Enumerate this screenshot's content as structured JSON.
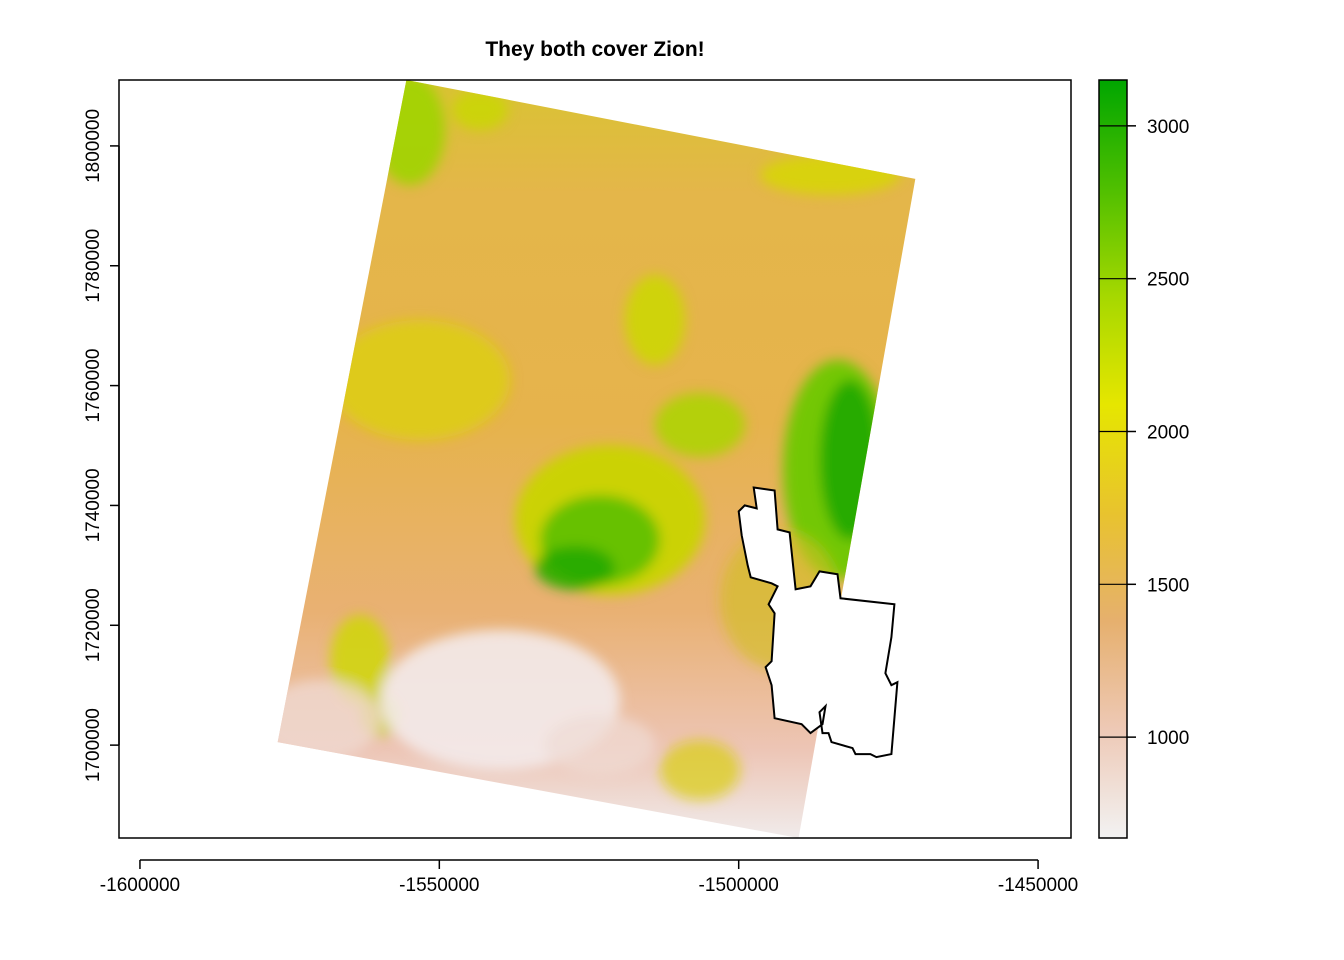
{
  "title": "They both cover Zion!",
  "chart_data": {
    "type": "map",
    "x_ticks": [
      "-1600000",
      "-1550000",
      "-1500000",
      "-1450000"
    ],
    "y_ticks": [
      "1700000",
      "1720000",
      "1740000",
      "1760000",
      "1780000",
      "1800000"
    ],
    "x_tick_values": [
      -1600000,
      -1550000,
      -1500000,
      -1450000
    ],
    "y_tick_values": [
      1700000,
      1720000,
      1740000,
      1760000,
      1780000,
      1800000
    ],
    "xlim": [
      -1603500,
      -1444500
    ],
    "ylim": [
      1684500,
      1811000
    ],
    "legend": {
      "type": "continuous",
      "ticks": [
        "1000",
        "1500",
        "2000",
        "2500",
        "3000"
      ],
      "tick_values": [
        1000,
        1500,
        2000,
        2500,
        3000
      ],
      "range": [
        670,
        3150
      ],
      "colors": [
        "#f2f2f2",
        "#eec9b6",
        "#e6b06e",
        "#e8c32e",
        "#e6e600",
        "#a6d800",
        "#4fbf00",
        "#00a600"
      ]
    },
    "raster": {
      "description": "elevation",
      "corners": [
        [
          -1555500,
          1811000
        ],
        [
          -1470500,
          1794500
        ],
        [
          -1490000,
          1684500
        ],
        [
          -1577000,
          1700500
        ]
      ]
    },
    "boundary": {
      "description": "Zion outline",
      "points": [
        [
          -1497500,
          1743000
        ],
        [
          -1494000,
          1742500
        ],
        [
          -1493500,
          1736000
        ],
        [
          -1491500,
          1735500
        ],
        [
          -1490500,
          1726000
        ],
        [
          -1488000,
          1726500
        ],
        [
          -1486500,
          1729000
        ],
        [
          -1483500,
          1728500
        ],
        [
          -1483000,
          1724500
        ],
        [
          -1474000,
          1723500
        ],
        [
          -1474500,
          1718000
        ],
        [
          -1475500,
          1712000
        ],
        [
          -1474500,
          1710000
        ],
        [
          -1473500,
          1710500
        ],
        [
          -1474500,
          1698500
        ],
        [
          -1477000,
          1698000
        ],
        [
          -1478000,
          1698500
        ],
        [
          -1480500,
          1698500
        ],
        [
          -1481000,
          1699500
        ],
        [
          -1484500,
          1700500
        ],
        [
          -1485000,
          1702000
        ],
        [
          -1486000,
          1702000
        ],
        [
          -1486500,
          1705500
        ],
        [
          -1485500,
          1706500
        ],
        [
          -1486000,
          1703500
        ],
        [
          -1488000,
          1702000
        ],
        [
          -1489500,
          1703500
        ],
        [
          -1494000,
          1704500
        ],
        [
          -1494500,
          1710000
        ],
        [
          -1495500,
          1713000
        ],
        [
          -1494500,
          1714000
        ],
        [
          -1494000,
          1722000
        ],
        [
          -1495000,
          1723500
        ],
        [
          -1493500,
          1726500
        ],
        [
          -1494500,
          1727000
        ],
        [
          -1498000,
          1728000
        ],
        [
          -1498500,
          1730000
        ],
        [
          -1499500,
          1735000
        ],
        [
          -1500000,
          1739000
        ],
        [
          -1499000,
          1740000
        ],
        [
          -1497000,
          1739500
        ]
      ]
    }
  }
}
